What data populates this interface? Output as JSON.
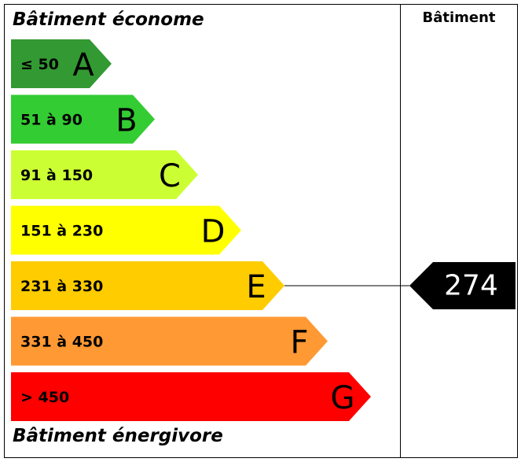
{
  "header": {
    "title_top": "Bâtiment économe",
    "title_bottom": "Bâtiment énergivore",
    "column_header": "Bâtiment"
  },
  "classes": [
    {
      "letter": "A",
      "range": "≤ 50",
      "color": "#339933"
    },
    {
      "letter": "B",
      "range": "51 à 90",
      "color": "#33cc33"
    },
    {
      "letter": "C",
      "range": "91 à 150",
      "color": "#ccff33"
    },
    {
      "letter": "D",
      "range": "151 à 230",
      "color": "#ffff00"
    },
    {
      "letter": "E",
      "range": "231 à 330",
      "color": "#ffcc00"
    },
    {
      "letter": "F",
      "range": "331 à 450",
      "color": "#ff9933"
    },
    {
      "letter": "G",
      "range": "> 450",
      "color": "#ff0000"
    }
  ],
  "building": {
    "value": "274",
    "class_letter": "E",
    "marker_color": "#000000"
  }
}
